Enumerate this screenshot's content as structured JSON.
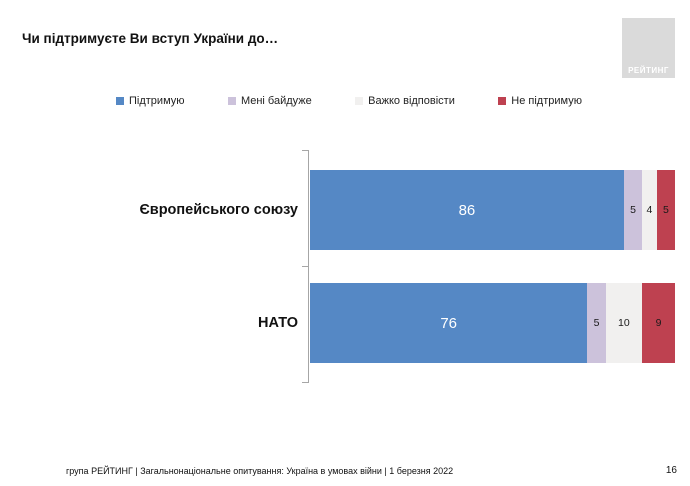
{
  "title": "Чи підтримуєте Ви вступ України до…",
  "logo": {
    "text": "РЕЙТИНГ"
  },
  "legend": [
    {
      "label": "Підтримую",
      "color": "#5588c5"
    },
    {
      "label": "Мені байдуже",
      "color": "#ccc2db"
    },
    {
      "label": "Важко відповісти",
      "color": "#f1f0ef"
    },
    {
      "label": "Не підтримую",
      "color": "#be4150"
    }
  ],
  "chart_data": {
    "type": "bar",
    "orientation": "horizontal",
    "stacked": true,
    "categories": [
      "Європейського союзу",
      "НАТО"
    ],
    "series": [
      {
        "name": "Підтримую",
        "color": "#5588c5",
        "values": [
          86,
          76
        ]
      },
      {
        "name": "Мені байдуже",
        "color": "#ccc2db",
        "values": [
          5,
          5
        ]
      },
      {
        "name": "Важко відповісти",
        "color": "#f1f0ef",
        "values": [
          4,
          10
        ]
      },
      {
        "name": "Не підтримую",
        "color": "#be4150",
        "values": [
          5,
          9
        ]
      }
    ],
    "xlim": [
      0,
      100
    ],
    "value_labels": true,
    "legend_position": "top",
    "grid": false
  },
  "footer": {
    "text": "група РЕЙТИНГ | Загальнонаціональне опитування: Україна в умовах війни | 1 березня 2022",
    "page_number": "16"
  }
}
